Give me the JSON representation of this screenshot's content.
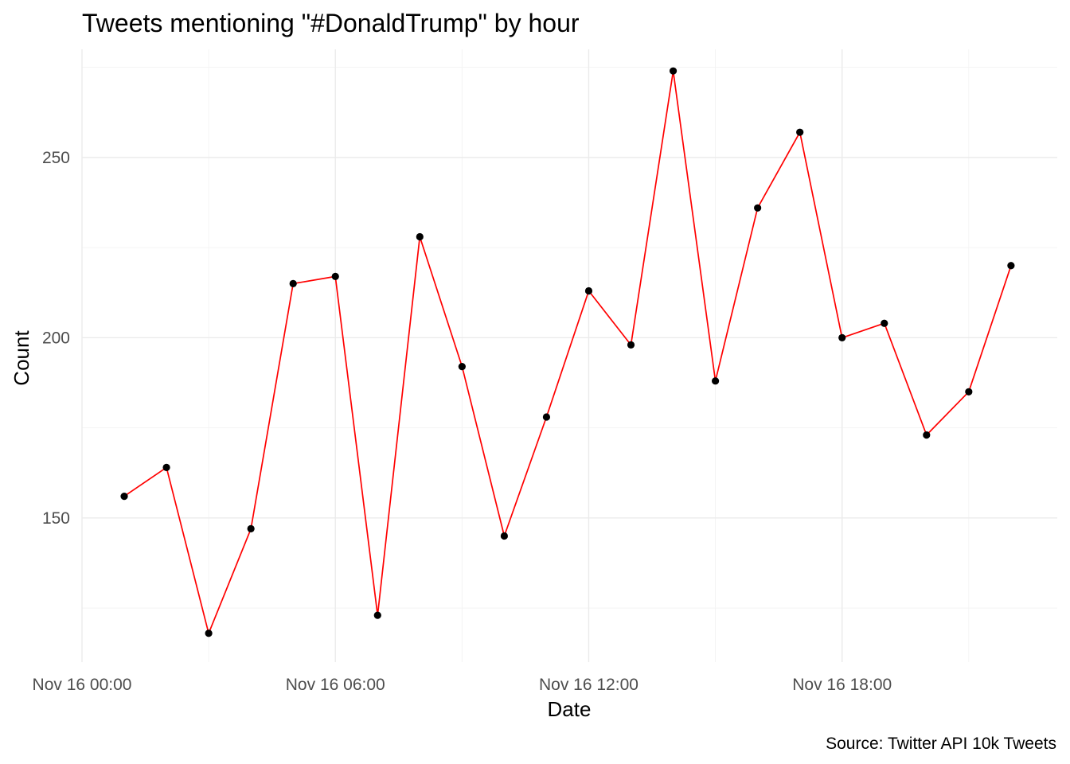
{
  "chart_data": {
    "type": "line",
    "title": "Tweets mentioning \"#DonaldTrump\" by hour",
    "xlabel": "Date",
    "ylabel": "Count",
    "caption": "Source: Twitter API 10k Tweets",
    "x_ticks": [
      "Nov 16 00:00",
      "Nov 16 06:00",
      "Nov 16 12:00",
      "Nov 16 18:00"
    ],
    "y_ticks": [
      150,
      200,
      250
    ],
    "ylim": [
      110,
      280
    ],
    "grid": true,
    "legend": "none",
    "line_color": "#ff0000",
    "point_color": "#000000",
    "series": [
      {
        "x": [
          "Nov 16 01:00",
          "Nov 16 02:00",
          "Nov 16 03:00",
          "Nov 16 04:00",
          "Nov 16 05:00",
          "Nov 16 06:00",
          "Nov 16 07:00",
          "Nov 16 08:00",
          "Nov 16 09:00",
          "Nov 16 10:00",
          "Nov 16 11:00",
          "Nov 16 12:00",
          "Nov 16 13:00",
          "Nov 16 14:00",
          "Nov 16 15:00",
          "Nov 16 16:00",
          "Nov 16 17:00",
          "Nov 16 18:00",
          "Nov 16 19:00",
          "Nov 16 20:00",
          "Nov 16 21:00",
          "Nov 16 22:00"
        ],
        "values": [
          156,
          164,
          118,
          147,
          215,
          217,
          123,
          228,
          192,
          145,
          178,
          213,
          198,
          274,
          188,
          236,
          257,
          200,
          204,
          173,
          185,
          220
        ]
      }
    ]
  }
}
